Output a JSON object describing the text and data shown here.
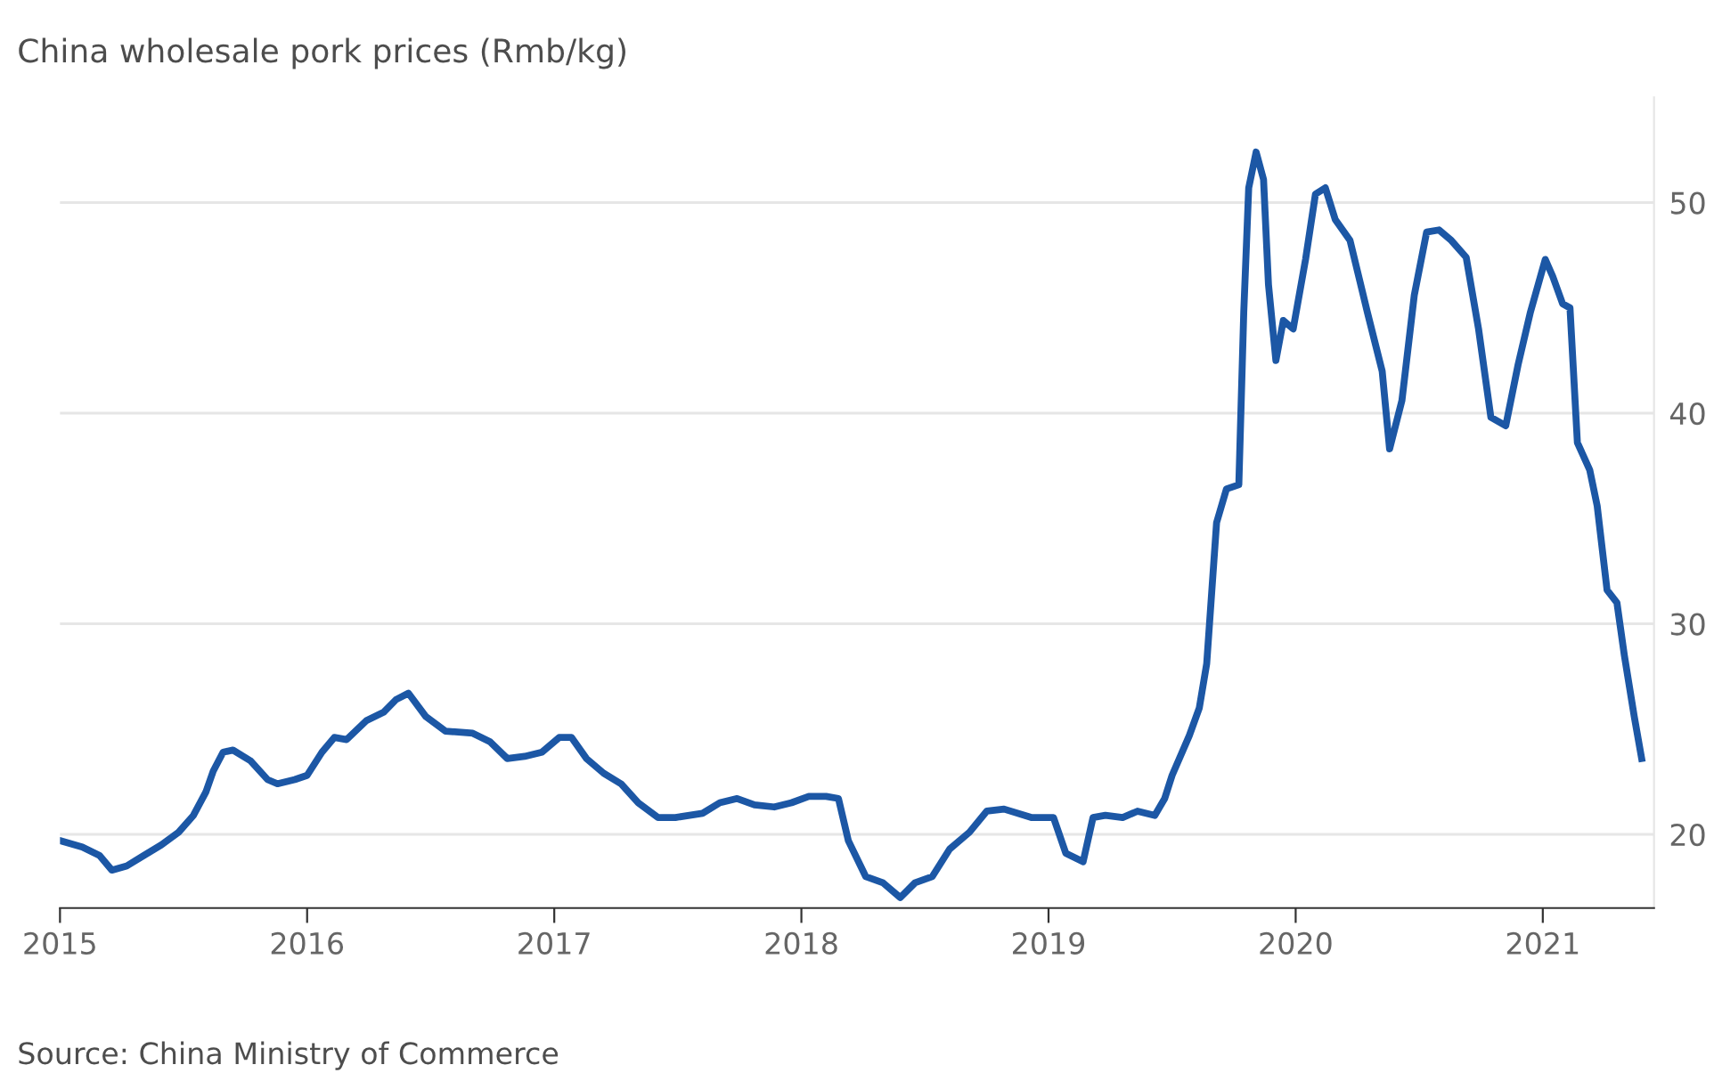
{
  "chart_data": {
    "type": "line",
    "title": "China wholesale pork prices (Rmb/kg)",
    "annotations": [
      "Source: China Ministry of Commerce"
    ],
    "series": [
      {
        "color": "#1c57a5",
        "x": [
          2015.0,
          2015.09,
          2015.16,
          2015.21,
          2015.27,
          2015.34,
          2015.41,
          2015.48,
          2015.54,
          2015.59,
          2015.62,
          2015.66,
          2015.7,
          2015.77,
          2015.84,
          2015.88,
          2015.95,
          2016.0,
          2016.06,
          2016.11,
          2016.16,
          2016.24,
          2016.31,
          2016.36,
          2016.41,
          2016.48,
          2016.56,
          2016.67,
          2016.74,
          2016.81,
          2016.88,
          2016.95,
          2017.02,
          2017.07,
          2017.13,
          2017.2,
          2017.27,
          2017.34,
          2017.42,
          2017.49,
          2017.6,
          2017.67,
          2017.74,
          2017.81,
          2017.89,
          2017.96,
          2018.03,
          2018.1,
          2018.15,
          2018.19,
          2018.26,
          2018.33,
          2018.4,
          2018.46,
          2018.53,
          2018.6,
          2018.68,
          2018.75,
          2018.82,
          2018.93,
          2019.02,
          2019.07,
          2019.14,
          2019.18,
          2019.23,
          2019.3,
          2019.36,
          2019.43,
          2019.47,
          2019.5,
          2019.57,
          2019.61,
          2019.64,
          2019.68,
          2019.72,
          2019.77,
          2019.79,
          2019.81,
          2019.84,
          2019.87,
          2019.89,
          2019.92,
          2019.95,
          2019.99,
          2020.04,
          2020.08,
          2020.12,
          2020.16,
          2020.22,
          2020.29,
          2020.35,
          2020.38,
          2020.43,
          2020.48,
          2020.53,
          2020.58,
          2020.63,
          2020.69,
          2020.74,
          2020.79,
          2020.85,
          2020.9,
          2020.95,
          2021.01,
          2021.04,
          2021.08,
          2021.11,
          2021.14,
          2021.19,
          2021.22,
          2021.26,
          2021.3,
          2021.33,
          2021.37,
          2021.4
        ],
        "values": [
          19.7,
          19.4,
          19.0,
          18.3,
          18.5,
          19.0,
          19.5,
          20.1,
          20.9,
          22.0,
          23.0,
          23.9,
          24.0,
          23.5,
          22.6,
          22.4,
          22.6,
          22.8,
          23.9,
          24.6,
          24.5,
          25.4,
          25.8,
          26.4,
          26.7,
          25.6,
          24.9,
          24.8,
          24.4,
          23.6,
          23.7,
          23.9,
          24.6,
          24.6,
          23.6,
          22.9,
          22.4,
          21.5,
          20.8,
          20.8,
          21.0,
          21.5,
          21.7,
          21.4,
          21.3,
          21.5,
          21.8,
          21.8,
          21.7,
          19.7,
          18.0,
          17.7,
          17.0,
          17.7,
          18.0,
          19.3,
          20.1,
          21.1,
          21.2,
          20.8,
          20.8,
          19.1,
          18.7,
          20.8,
          20.9,
          20.8,
          21.1,
          20.9,
          21.7,
          22.8,
          24.7,
          26.0,
          28.1,
          34.8,
          36.4,
          36.6,
          44.8,
          50.7,
          52.4,
          51.1,
          46.1,
          42.5,
          44.4,
          44.0,
          47.3,
          50.4,
          50.7,
          49.2,
          48.2,
          44.8,
          42.0,
          38.3,
          40.6,
          45.6,
          48.6,
          48.7,
          48.2,
          47.4,
          44.0,
          39.8,
          39.4,
          42.3,
          44.8,
          47.3,
          46.5,
          45.2,
          45.0,
          38.6,
          37.3,
          35.6,
          31.6,
          31.0,
          28.5,
          25.6,
          23.6
        ]
      }
    ],
    "xlim": [
      2015,
      2021.45
    ],
    "xticks": [
      2015,
      2016,
      2017,
      2018,
      2019,
      2020,
      2021
    ],
    "ylim": [
      16.5,
      55
    ],
    "yticks": [
      20,
      30,
      40,
      50
    ],
    "grid": "y",
    "legend": false
  }
}
